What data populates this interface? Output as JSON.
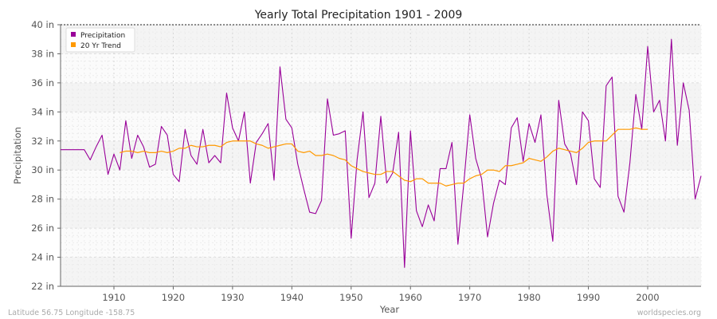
{
  "chart_data": {
    "type": "line",
    "title": "Yearly Total Precipitation 1901 - 2009",
    "xlabel": "Year",
    "ylabel": "Precipitation",
    "xlim": [
      1901,
      2009
    ],
    "ylim": [
      22,
      40
    ],
    "x_ticks": [
      1910,
      1920,
      1930,
      1940,
      1950,
      1960,
      1970,
      1980,
      1990,
      2000
    ],
    "y_ticks": [
      22,
      24,
      26,
      28,
      30,
      32,
      34,
      36,
      38,
      40
    ],
    "y_tick_labels": [
      "22 in",
      "24 in",
      "26 in",
      "28 in",
      "30 in",
      "32 in",
      "34 in",
      "36 in",
      "38 in",
      "40 in"
    ],
    "grid": true,
    "legend_position": "top-left",
    "series": [
      {
        "name": "Precipitation",
        "color": "#990099",
        "x": [
          1901,
          1902,
          1903,
          1904,
          1905,
          1906,
          1907,
          1908,
          1909,
          1910,
          1911,
          1912,
          1913,
          1914,
          1915,
          1916,
          1917,
          1918,
          1919,
          1920,
          1921,
          1922,
          1923,
          1924,
          1925,
          1926,
          1927,
          1928,
          1929,
          1930,
          1931,
          1932,
          1933,
          1934,
          1935,
          1936,
          1937,
          1938,
          1939,
          1940,
          1941,
          1942,
          1943,
          1944,
          1945,
          1946,
          1947,
          1948,
          1949,
          1950,
          1951,
          1952,
          1953,
          1954,
          1955,
          1956,
          1957,
          1958,
          1959,
          1960,
          1961,
          1962,
          1963,
          1964,
          1965,
          1966,
          1967,
          1968,
          1969,
          1970,
          1971,
          1972,
          1973,
          1974,
          1975,
          1976,
          1977,
          1978,
          1979,
          1980,
          1981,
          1982,
          1983,
          1984,
          1985,
          1986,
          1987,
          1988,
          1989,
          1990,
          1991,
          1992,
          1993,
          1994,
          1995,
          1996,
          1997,
          1998,
          1999,
          2000,
          2001,
          2002,
          2003,
          2004,
          2005,
          2006,
          2007,
          2008,
          2009
        ],
        "values": [
          31.4,
          31.4,
          31.4,
          31.4,
          31.4,
          30.7,
          31.6,
          32.4,
          29.7,
          31.1,
          30.0,
          33.4,
          30.8,
          32.4,
          31.6,
          30.2,
          30.4,
          33.0,
          32.4,
          29.7,
          29.2,
          32.8,
          31.0,
          30.4,
          32.8,
          30.5,
          31.0,
          30.5,
          35.3,
          32.9,
          32.0,
          34.0,
          29.1,
          31.9,
          32.5,
          33.2,
          29.3,
          37.1,
          33.5,
          32.9,
          30.4,
          28.7,
          27.1,
          27.0,
          27.9,
          34.9,
          32.4,
          32.5,
          32.7,
          25.3,
          30.7,
          34.0,
          28.1,
          29.1,
          33.7,
          29.1,
          29.8,
          32.6,
          23.3,
          32.7,
          27.2,
          26.1,
          27.6,
          26.5,
          30.1,
          30.1,
          31.9,
          24.9,
          29.1,
          33.8,
          30.8,
          29.4,
          25.4,
          27.7,
          29.3,
          29.0,
          32.9,
          33.6,
          30.6,
          33.2,
          31.9,
          33.8,
          28.3,
          25.1,
          34.8,
          31.8,
          31.1,
          29.0,
          34.0,
          33.4,
          29.4,
          28.8,
          35.8,
          36.4,
          28.2,
          27.1,
          30.5,
          35.2,
          32.8,
          38.5,
          34.0,
          34.8,
          32.0,
          39.0,
          31.7,
          36.0,
          34.1,
          28.0,
          29.6
        ]
      },
      {
        "name": "20 Yr Trend",
        "color": "#ff9900",
        "x": [
          1911,
          1912,
          1913,
          1914,
          1915,
          1916,
          1917,
          1918,
          1919,
          1920,
          1921,
          1922,
          1923,
          1924,
          1925,
          1926,
          1927,
          1928,
          1929,
          1930,
          1931,
          1932,
          1933,
          1934,
          1935,
          1936,
          1937,
          1938,
          1939,
          1940,
          1941,
          1942,
          1943,
          1944,
          1945,
          1946,
          1947,
          1948,
          1949,
          1950,
          1951,
          1952,
          1953,
          1954,
          1955,
          1956,
          1957,
          1958,
          1959,
          1960,
          1961,
          1962,
          1963,
          1964,
          1965,
          1966,
          1967,
          1968,
          1969,
          1970,
          1971,
          1972,
          1973,
          1974,
          1975,
          1976,
          1977,
          1978,
          1979,
          1980,
          1981,
          1982,
          1983,
          1984,
          1985,
          1986,
          1987,
          1988,
          1989,
          1990,
          1991,
          1992,
          1993,
          1994,
          1995,
          1996,
          1997,
          1998,
          1999,
          2000
        ],
        "values": [
          31.2,
          31.3,
          31.3,
          31.2,
          31.3,
          31.2,
          31.2,
          31.3,
          31.2,
          31.3,
          31.5,
          31.5,
          31.7,
          31.6,
          31.6,
          31.7,
          31.7,
          31.6,
          31.9,
          32.0,
          32.0,
          32.0,
          32.0,
          31.8,
          31.7,
          31.5,
          31.6,
          31.7,
          31.8,
          31.8,
          31.3,
          31.2,
          31.3,
          31.0,
          31.0,
          31.1,
          31.0,
          30.8,
          30.7,
          30.3,
          30.1,
          29.9,
          29.8,
          29.7,
          29.7,
          29.9,
          29.9,
          29.6,
          29.3,
          29.2,
          29.4,
          29.4,
          29.1,
          29.1,
          29.1,
          28.9,
          29.0,
          29.1,
          29.1,
          29.4,
          29.6,
          29.7,
          30.0,
          30.0,
          29.9,
          30.3,
          30.3,
          30.4,
          30.5,
          30.8,
          30.7,
          30.6,
          30.9,
          31.3,
          31.5,
          31.4,
          31.3,
          31.2,
          31.5,
          31.9,
          32.0,
          32.0,
          32.0,
          32.4,
          32.8,
          32.8,
          32.8,
          32.9,
          32.8,
          32.8
        ]
      }
    ]
  },
  "footer": {
    "location": "Latitude 56.75 Longitude -158.75",
    "credit": "worldspecies.org"
  }
}
